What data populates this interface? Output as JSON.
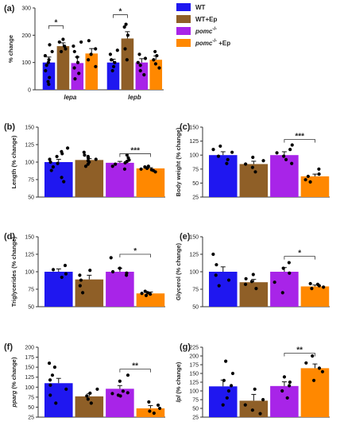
{
  "colors": {
    "WT": "#1f17f0",
    "WT+Ep": "#8f5f27",
    "pomc": "#a824e8",
    "pomc+Ep": "#ff8800",
    "axis": "#333333"
  },
  "legend": {
    "items": [
      {
        "key": "WT",
        "label": "WT",
        "italic": false
      },
      {
        "key": "WT+Ep",
        "label": "WT+Ep",
        "italic": false
      },
      {
        "key": "pomc",
        "label": "pomc",
        "sup": "-/-",
        "suffix": "",
        "italic": true
      },
      {
        "key": "pomc+Ep",
        "label": "pomc",
        "sup": "-/-",
        "suffix": " +Ep",
        "italic": true
      }
    ]
  },
  "chart_data": [
    {
      "panel": "(a)",
      "type": "bar",
      "ylabel": "% change",
      "ylim": [
        0,
        300
      ],
      "yticks": [
        "0",
        "100",
        "200",
        "300"
      ],
      "ytickvals": [
        0,
        100,
        200,
        300
      ],
      "categories": [
        "lepa",
        "lepb"
      ],
      "groups": [
        "WT",
        "WT+Ep",
        "pomc",
        "pomc+Ep"
      ],
      "values": [
        [
          100,
          160,
          98,
          133
        ],
        [
          100,
          188,
          100,
          110
        ]
      ],
      "errors": [
        [
          20,
          12,
          22,
          18
        ],
        [
          12,
          25,
          14,
          14
        ]
      ],
      "points": [
        [
          [
            20,
            45,
            70,
            90,
            100,
            110,
            125,
            140,
            165,
            30
          ],
          [
            140,
            150,
            160,
            175,
            185
          ],
          [
            40,
            60,
            80,
            100,
            120,
            140,
            160,
            175
          ],
          [
            85,
            110,
            130,
            150,
            180
          ]
        ],
        [
          [
            70,
            85,
            100,
            110,
            130,
            145
          ],
          [
            110,
            150,
            200,
            240,
            230
          ],
          [
            55,
            70,
            90,
            100,
            115,
            130
          ],
          [
            80,
            95,
            110,
            125,
            140
          ]
        ]
      ],
      "sig": [
        {
          "cat": 0,
          "from": 0,
          "to": 1,
          "y": 235,
          "label": "*"
        },
        {
          "cat": 1,
          "from": 0,
          "to": 1,
          "y": 275,
          "label": "*"
        }
      ]
    },
    {
      "panel": "(b)",
      "type": "bar",
      "ylabel": "Length (% change)",
      "ylim": [
        50,
        150
      ],
      "yticks": [
        "50",
        "75",
        "100",
        "125",
        "150"
      ],
      "ytickvals": [
        50,
        75,
        100,
        125,
        150
      ],
      "groups": [
        "WT",
        "WT+Ep",
        "pomc",
        "pomc+Ep"
      ],
      "values": [
        100,
        103,
        99,
        91
      ],
      "errors": [
        4,
        2,
        2,
        1
      ],
      "points": [
        [
          72,
          78,
          88,
          93,
          98,
          100,
          104,
          108,
          112,
          115,
          120
        ],
        [
          94,
          97,
          100,
          102,
          104,
          106,
          108,
          110,
          114
        ],
        [
          90,
          94,
          97,
          99,
          101,
          103,
          106,
          110
        ],
        [
          86,
          88,
          89,
          90,
          91,
          92,
          93,
          94
        ]
      ],
      "sig": [
        {
          "from": 2,
          "to": 3,
          "y": 112,
          "label": "***"
        }
      ]
    },
    {
      "panel": "(c)",
      "type": "bar",
      "ylabel": "Body weight (% change)",
      "ylim": [
        25,
        150
      ],
      "yticks": [
        "25",
        "50",
        "75",
        "100",
        "125",
        "150"
      ],
      "ytickvals": [
        25,
        50,
        75,
        100,
        125,
        150
      ],
      "groups": [
        "WT",
        "WT+Ep",
        "pomc",
        "pomc+Ep"
      ],
      "values": [
        100,
        84,
        100,
        62
      ],
      "errors": [
        6,
        5,
        6,
        4
      ],
      "points": [
        [
          85,
          92,
          98,
          105,
          110,
          116
        ],
        [
          70,
          78,
          84,
          90,
          96
        ],
        [
          85,
          92,
          98,
          104,
          110,
          118
        ],
        [
          52,
          56,
          62,
          66,
          75
        ]
      ],
      "sig": [
        {
          "from": 2,
          "to": 3,
          "y": 128,
          "label": "***"
        }
      ]
    },
    {
      "panel": "(d)",
      "type": "bar",
      "ylabel": "Triglycerides (% change)",
      "ylim": [
        50,
        150
      ],
      "yticks": [
        "50",
        "75",
        "100",
        "125",
        "150"
      ],
      "ytickvals": [
        50,
        75,
        100,
        125,
        150
      ],
      "groups": [
        "WT",
        "WT+Ep",
        "pomc",
        "pomc+Ep"
      ],
      "values": [
        100,
        89,
        100,
        69
      ],
      "errors": [
        4,
        6,
        5,
        2
      ],
      "points": [
        [
          92,
          97,
          103,
          109
        ],
        [
          70,
          80,
          88,
          95,
          102
        ],
        [
          95,
          98,
          100,
          105,
          120
        ],
        [
          66,
          68,
          69,
          70,
          72
        ]
      ],
      "sig": [
        {
          "from": 2,
          "to": 3,
          "y": 125,
          "label": "*"
        }
      ]
    },
    {
      "panel": "(e)",
      "type": "bar",
      "ylabel": "Glycerol (% change)",
      "ylim": [
        50,
        150
      ],
      "yticks": [
        "50",
        "75",
        "100",
        "125",
        "150"
      ],
      "ytickvals": [
        50,
        75,
        100,
        125,
        150
      ],
      "groups": [
        "WT",
        "WT+Ep",
        "pomc",
        "pomc+Ep"
      ],
      "values": [
        100,
        85,
        100,
        79
      ],
      "errors": [
        7,
        4,
        6,
        2
      ],
      "points": [
        [
          80,
          88,
          95,
          110,
          125
        ],
        [
          76,
          82,
          86,
          90,
          96
        ],
        [
          70,
          85,
          98,
          105,
          113
        ],
        [
          76,
          78,
          80,
          82,
          83
        ]
      ],
      "sig": [
        {
          "from": 2,
          "to": 3,
          "y": 122,
          "label": "*"
        }
      ]
    },
    {
      "panel": "(f)",
      "type": "bar",
      "ylabel": "pparg (% change)",
      "ylabel_italic_word": "pparg",
      "ylim": [
        25,
        200
      ],
      "yticks": [
        "25",
        "50",
        "75",
        "100",
        "125",
        "150",
        "175",
        "200"
      ],
      "ytickvals": [
        25,
        50,
        75,
        100,
        125,
        150,
        175,
        200
      ],
      "groups": [
        "WT",
        "WT+Ep",
        "pomc",
        "pomc+Ep"
      ],
      "values": [
        110,
        77,
        96,
        47
      ],
      "errors": [
        12,
        7,
        8,
        7
      ],
      "points": [
        [
          60,
          80,
          95,
          105,
          118,
          130,
          150,
          160
        ],
        [
          60,
          70,
          78,
          85,
          95
        ],
        [
          78,
          80,
          84,
          86,
          90,
          115,
          130
        ],
        [
          35,
          40,
          47,
          55,
          63
        ]
      ],
      "sig": [
        {
          "from": 2,
          "to": 3,
          "y": 145,
          "label": "**"
        }
      ]
    },
    {
      "panel": "(g)",
      "type": "bar",
      "ylabel": "lpl (% change)",
      "ylabel_italic_word": "lpl",
      "ylim": [
        25,
        225
      ],
      "yticks": [
        "25",
        "50",
        "75",
        "100",
        "125",
        "150",
        "175",
        "200",
        "225"
      ],
      "ytickvals": [
        25,
        50,
        75,
        100,
        125,
        150,
        175,
        200,
        225
      ],
      "groups": [
        "WT",
        "WT+Ep",
        "pomc",
        "pomc+Ep"
      ],
      "values": [
        113,
        72,
        114,
        165
      ],
      "errors": [
        18,
        18,
        12,
        12
      ],
      "points": [
        [
          60,
          80,
          100,
          115,
          130,
          150,
          185
        ],
        [
          35,
          45,
          60,
          75,
          105
        ],
        [
          80,
          100,
          115,
          125,
          140
        ],
        [
          130,
          155,
          165,
          180,
          200
        ]
      ],
      "sig": [
        {
          "from": 2,
          "to": 3,
          "y": 208,
          "label": "**"
        }
      ]
    }
  ]
}
